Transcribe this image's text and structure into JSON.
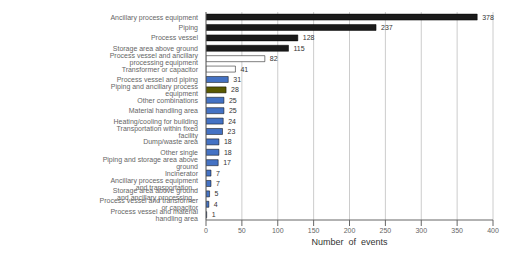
{
  "chart_data": {
    "type": "bar",
    "orientation": "horizontal",
    "categories": [
      "Ancillary process equipment",
      "Piping",
      "Process vessel",
      "Storage area above ground",
      "Process vessel and ancillary processing equipment",
      "Transformer or capacitor",
      "Process vessel and piping",
      "Piping and ancillary process equipment",
      "Other combinations",
      "Material handling area",
      "Heating/cooling for building",
      "Transportation within fixed facility",
      "Dump/waste area",
      "Other single",
      "Piping and storage area above ground",
      "Incinerator",
      "Ancillary process equipment and transportation...",
      "Storage area above ground and ancillary processing...",
      "Process vessel and transformer or capacitor",
      "Process vessel and material handling area"
    ],
    "values": [
      378,
      237,
      128,
      115,
      82,
      41,
      31,
      28,
      25,
      25,
      24,
      23,
      18,
      18,
      17,
      7,
      7,
      5,
      4,
      1
    ],
    "colors": [
      "#1a1a1a",
      "#1a1a1a",
      "#1a1a1a",
      "#1a1a1a",
      "#ffffff",
      "#ffffff",
      "#4472c4",
      "#595900",
      "#4472c4",
      "#4472c4",
      "#4472c4",
      "#4472c4",
      "#4472c4",
      "#4472c4",
      "#4472c4",
      "#4472c4",
      "#4472c4",
      "#4472c4",
      "#4472c4",
      "#4472c4"
    ],
    "xlabel": "Number  of  events",
    "xlim": [
      0,
      400
    ],
    "xticks": [
      0,
      50,
      100,
      150,
      200,
      250,
      300,
      350,
      400
    ],
    "grid": true,
    "data_labels": true
  }
}
